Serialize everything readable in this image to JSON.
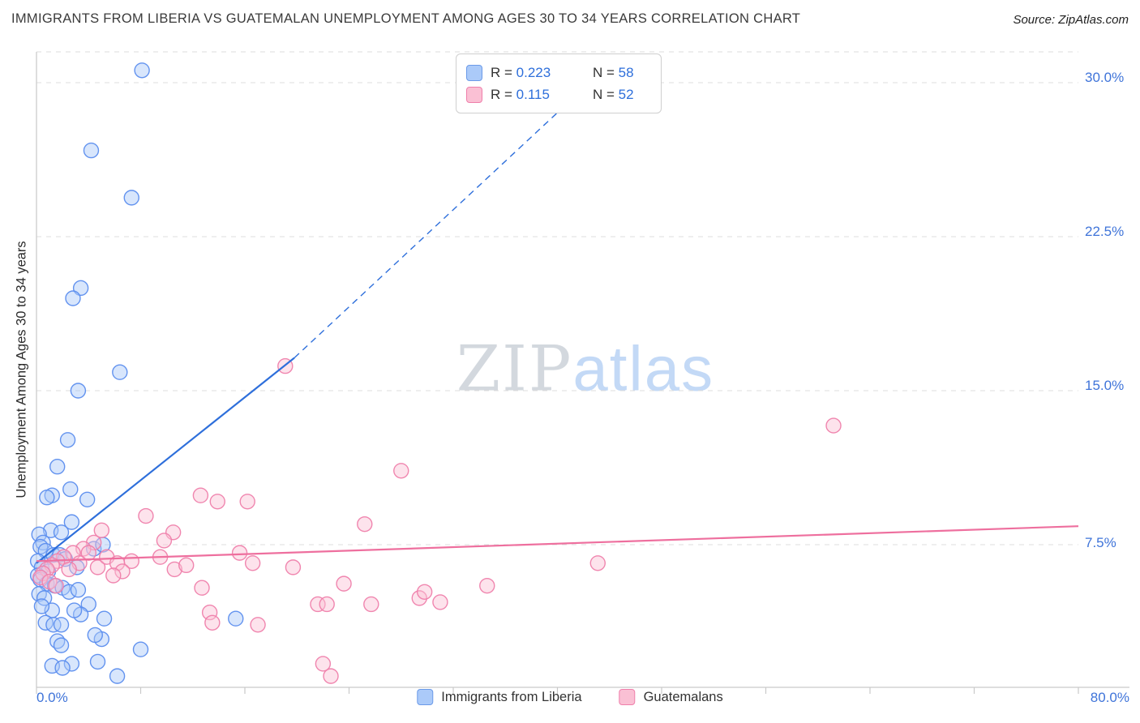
{
  "header": {
    "title": "IMMIGRANTS FROM LIBERIA VS GUATEMALAN UNEMPLOYMENT AMONG AGES 30 TO 34 YEARS CORRELATION CHART",
    "source": "Source: ZipAtlas.com"
  },
  "watermark": {
    "part1": "ZIP",
    "part2": "atlas"
  },
  "axes": {
    "y_label": "Unemployment Among Ages 30 to 34 years",
    "y_ticks": [
      "30.0%",
      "22.5%",
      "15.0%",
      "7.5%"
    ],
    "x_min_label": "0.0%",
    "x_max_label": "80.0%"
  },
  "stats": {
    "r_label": "R = ",
    "n_label": "N = ",
    "rows": [
      {
        "r": "0.223",
        "n": "58"
      },
      {
        "r": "0.115",
        "n": "52"
      }
    ]
  },
  "legend": {
    "series1": "Immigrants from Liberia",
    "series2": "Guatemalans"
  },
  "colors": {
    "grid": "#dcdcdc",
    "axis": "#c9c9c9",
    "tick_label": "#3f74d9",
    "blue_fill": "#a8c8f8",
    "blue_stroke": "#5b8dee",
    "blue_line": "#2e6fdb",
    "pink_fill": "#fac0d4",
    "pink_stroke": "#ef7fab",
    "pink_line": "#ee6f9e"
  },
  "chart_data": {
    "type": "scatter",
    "title": "IMMIGRANTS FROM LIBERIA VS GUATEMALAN UNEMPLOYMENT AMONG AGES 30 TO 34 YEARS CORRELATION CHART",
    "xlabel": "",
    "ylabel": "Unemployment Among Ages 30 to 34 years",
    "xlim": [
      0,
      80
    ],
    "ylim": [
      0,
      31.5
    ],
    "x_tick_labels": [
      "0.0%",
      "80.0%"
    ],
    "y_tick_values": [
      7.5,
      15,
      22.5,
      30
    ],
    "y_tick_labels": [
      "7.5%",
      "15.0%",
      "22.5%",
      "30.0%"
    ],
    "top_gridline": 31.5,
    "grid": "dashed horizontal",
    "legend_position": "bottom-center",
    "series": [
      {
        "name": "Immigrants from Liberia",
        "R": 0.223,
        "N": 58,
        "stroke": "#5b8dee",
        "fill": "#a8c8f8",
        "points": [
          [
            8.1,
            30.6
          ],
          [
            4.2,
            26.7
          ],
          [
            7.3,
            24.4
          ],
          [
            3.4,
            20.0
          ],
          [
            2.8,
            19.5
          ],
          [
            6.4,
            15.9
          ],
          [
            3.2,
            15.0
          ],
          [
            2.4,
            12.6
          ],
          [
            1.6,
            11.3
          ],
          [
            2.6,
            10.2
          ],
          [
            1.2,
            9.9
          ],
          [
            0.8,
            9.8
          ],
          [
            3.9,
            9.7
          ],
          [
            2.7,
            8.6
          ],
          [
            1.1,
            8.2
          ],
          [
            1.9,
            8.1
          ],
          [
            0.2,
            8.0
          ],
          [
            0.5,
            7.6
          ],
          [
            0.3,
            7.4
          ],
          [
            0.7,
            7.2
          ],
          [
            1.3,
            7.0
          ],
          [
            1.8,
            7.0
          ],
          [
            2.2,
            6.8
          ],
          [
            3.1,
            6.4
          ],
          [
            4.4,
            7.3
          ],
          [
            5.1,
            7.5
          ],
          [
            0.1,
            6.7
          ],
          [
            0.4,
            6.4
          ],
          [
            0.9,
            6.2
          ],
          [
            0.1,
            6.0
          ],
          [
            0.3,
            5.8
          ],
          [
            0.8,
            5.6
          ],
          [
            1.4,
            5.5
          ],
          [
            2.0,
            5.4
          ],
          [
            2.5,
            5.2
          ],
          [
            3.2,
            5.3
          ],
          [
            0.2,
            5.1
          ],
          [
            0.6,
            4.9
          ],
          [
            4.0,
            4.6
          ],
          [
            1.2,
            4.3
          ],
          [
            3.4,
            4.1
          ],
          [
            5.2,
            3.9
          ],
          [
            15.3,
            3.9
          ],
          [
            0.7,
            3.7
          ],
          [
            1.3,
            3.6
          ],
          [
            1.9,
            3.6
          ],
          [
            0.4,
            4.5
          ],
          [
            2.9,
            4.3
          ],
          [
            1.6,
            2.8
          ],
          [
            5.0,
            2.9
          ],
          [
            1.9,
            2.6
          ],
          [
            8.0,
            2.4
          ],
          [
            4.7,
            1.8
          ],
          [
            2.7,
            1.7
          ],
          [
            1.2,
            1.6
          ],
          [
            2.0,
            1.5
          ],
          [
            6.2,
            1.1
          ],
          [
            4.5,
            3.1
          ]
        ]
      },
      {
        "name": "Guatemalans",
        "R": 0.115,
        "N": 52,
        "stroke": "#ef7fab",
        "fill": "#fac0d4",
        "points": [
          [
            19.1,
            16.2
          ],
          [
            61.2,
            13.3
          ],
          [
            28.0,
            11.1
          ],
          [
            12.6,
            9.9
          ],
          [
            13.9,
            9.6
          ],
          [
            16.2,
            9.6
          ],
          [
            8.4,
            8.9
          ],
          [
            25.2,
            8.5
          ],
          [
            10.5,
            8.1
          ],
          [
            9.8,
            7.7
          ],
          [
            5.0,
            8.2
          ],
          [
            4.4,
            7.6
          ],
          [
            3.6,
            7.3
          ],
          [
            2.8,
            7.1
          ],
          [
            2.1,
            6.9
          ],
          [
            1.6,
            6.7
          ],
          [
            1.2,
            6.5
          ],
          [
            0.8,
            6.3
          ],
          [
            0.5,
            6.1
          ],
          [
            0.3,
            5.9
          ],
          [
            1.0,
            5.7
          ],
          [
            1.5,
            5.5
          ],
          [
            4.0,
            7.1
          ],
          [
            4.7,
            6.4
          ],
          [
            5.4,
            6.9
          ],
          [
            6.2,
            6.6
          ],
          [
            7.3,
            6.7
          ],
          [
            9.5,
            6.9
          ],
          [
            10.6,
            6.3
          ],
          [
            11.5,
            6.5
          ],
          [
            15.6,
            7.1
          ],
          [
            16.6,
            6.6
          ],
          [
            19.7,
            6.4
          ],
          [
            43.1,
            6.6
          ],
          [
            34.6,
            5.5
          ],
          [
            23.6,
            5.6
          ],
          [
            29.4,
            4.9
          ],
          [
            25.7,
            4.6
          ],
          [
            21.6,
            4.6
          ],
          [
            22.3,
            4.6
          ],
          [
            13.3,
            4.2
          ],
          [
            12.7,
            5.4
          ],
          [
            13.5,
            3.7
          ],
          [
            17.0,
            3.6
          ],
          [
            6.6,
            6.2
          ],
          [
            5.9,
            6.0
          ],
          [
            3.3,
            6.6
          ],
          [
            2.5,
            6.3
          ],
          [
            22.0,
            1.7
          ],
          [
            22.6,
            1.1
          ],
          [
            29.8,
            5.2
          ],
          [
            31.0,
            4.7
          ]
        ]
      }
    ],
    "trend_lines": [
      {
        "name": "Immigrants from Liberia",
        "color": "#2e6fdb",
        "solid": [
          [
            0,
            6.6
          ],
          [
            19.8,
            16.6
          ]
        ],
        "dashed": [
          [
            19.8,
            16.6
          ],
          [
            44.5,
            31.2
          ]
        ]
      },
      {
        "name": "Guatemalans",
        "color": "#ee6f9e",
        "solid": [
          [
            0,
            6.7
          ],
          [
            80,
            8.4
          ]
        ]
      }
    ]
  }
}
